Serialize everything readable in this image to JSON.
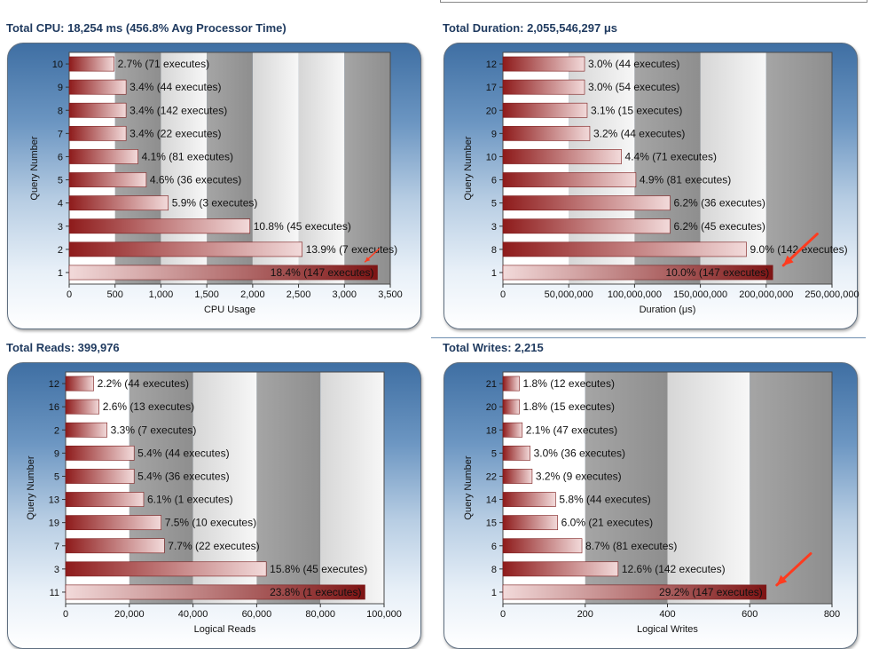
{
  "chart_data": [
    {
      "type": "bar",
      "title": "Total CPU: 18,254 ms (456.8% Avg Processor Time)",
      "xlabel": "CPU Usage",
      "ylabel": "Query Number",
      "xlim": [
        0,
        3500
      ],
      "xticks": [
        "0",
        "500",
        "1,000",
        "1,500",
        "2,000",
        "2,500",
        "3,000",
        "3,500"
      ],
      "categories": [
        "1",
        "2",
        "3",
        "4",
        "5",
        "6",
        "7",
        "8",
        "9",
        "10"
      ],
      "values": [
        3360,
        2540,
        1970,
        1080,
        840,
        750,
        620,
        620,
        620,
        490
      ],
      "labels": [
        "18.4% (147 executes)",
        "13.9% (7 executes)",
        "10.8% (45 executes)",
        "5.9% (3 executes)",
        "4.6% (36 executes)",
        "4.1% (81 executes)",
        "3.4% (22 executes)",
        "3.4% (142 executes)",
        "3.4% (44 executes)",
        "2.7% (71 executes)"
      ],
      "highlight": "1",
      "arrow": "small"
    },
    {
      "type": "bar",
      "title": "Total Duration: 2,055,546,297 μs",
      "xlabel": "Duration (μs)",
      "ylabel": "Query Number",
      "xlim": [
        0,
        250000000
      ],
      "xticks": [
        "0",
        "50,000,000",
        "100,000,000",
        "150,000,000",
        "200,000,000",
        "250,000,000"
      ],
      "categories": [
        "1",
        "8",
        "3",
        "5",
        "6",
        "10",
        "9",
        "20",
        "17",
        "12"
      ],
      "values": [
        205000000,
        185000000,
        127000000,
        127000000,
        101000000,
        90000000,
        66000000,
        64000000,
        62000000,
        62000000
      ],
      "labels": [
        "10.0% (147 executes)",
        "9.0% (142 executes)",
        "6.2% (45 executes)",
        "6.2% (36 executes)",
        "4.9% (81 executes)",
        "4.4% (71 executes)",
        "3.2% (44 executes)",
        "3.1% (15 executes)",
        "3.0% (54 executes)",
        "3.0% (44 executes)"
      ],
      "highlight": "1",
      "arrow": "large"
    },
    {
      "type": "bar",
      "title": "Total Reads: 399,976",
      "xlabel": "Logical Reads",
      "ylabel": "Query Number",
      "xlim": [
        0,
        100000
      ],
      "xticks": [
        "0",
        "20,000",
        "40,000",
        "60,000",
        "80,000",
        "100,000"
      ],
      "categories": [
        "11",
        "3",
        "7",
        "19",
        "13",
        "5",
        "9",
        "2",
        "16",
        "12"
      ],
      "values": [
        94000,
        63000,
        31000,
        30000,
        24500,
        21500,
        21500,
        13000,
        10500,
        8800
      ],
      "labels": [
        "23.8% (1 executes)",
        "15.8% (45 executes)",
        "7.7% (22 executes)",
        "7.5% (10 executes)",
        "6.1% (1 executes)",
        "5.4% (36 executes)",
        "5.4% (44 executes)",
        "3.3% (7 executes)",
        "2.6% (13 executes)",
        "2.2% (44 executes)"
      ],
      "highlight": "11",
      "arrow": "none"
    },
    {
      "type": "bar",
      "title": "Total Writes: 2,215",
      "xlabel": "Logical Writes",
      "ylabel": "Query Number",
      "xlim": [
        0,
        800
      ],
      "xticks": [
        "0",
        "200",
        "400",
        "600",
        "800"
      ],
      "categories": [
        "1",
        "8",
        "6",
        "15",
        "14",
        "22",
        "5",
        "18",
        "20",
        "21"
      ],
      "values": [
        640,
        280,
        192,
        133,
        128,
        71,
        66,
        47,
        40,
        40
      ],
      "labels": [
        "29.2% (147 executes)",
        "12.6% (142 executes)",
        "8.7% (81 executes)",
        "6.0% (21 executes)",
        "5.8% (44 executes)",
        "3.2% (9 executes)",
        "3.0% (36 executes)",
        "2.1% (47 executes)",
        "1.8% (15 executes)",
        "1.8% (12 executes)"
      ],
      "highlight": "1",
      "arrow": "large"
    }
  ],
  "colors": {
    "bar_dark": "#8e1b1b",
    "bar_light": "#f2dada",
    "arrow": "#ff3b1f",
    "band_dark": "#9b9b9b",
    "band_light": "#f5f5f5",
    "title": "#1f3a5f"
  }
}
